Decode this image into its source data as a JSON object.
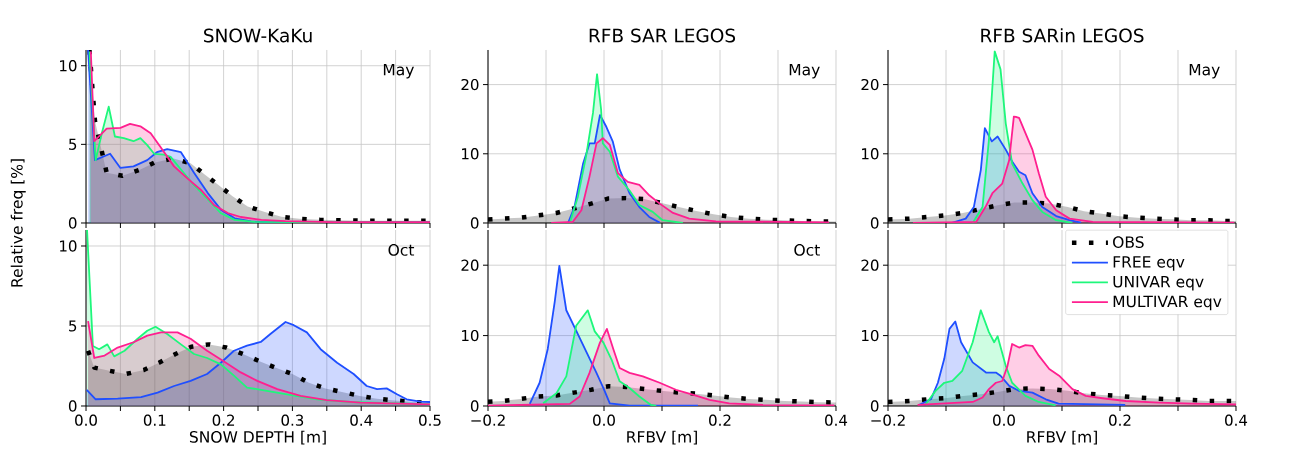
{
  "chart_data": [
    {
      "type": "area",
      "title": "SNOW-KaKu",
      "ylabel": "Relative freq [%]",
      "annotations": [
        "May"
      ],
      "xlim": [
        0,
        0.5
      ],
      "ylim": [
        0,
        11
      ],
      "grid": true,
      "tick_labels": "y",
      "xticks": [
        {
          "value": 0,
          "label": null
        },
        {
          "value": 0.05,
          "label": null
        },
        {
          "value": 0.1,
          "label": null
        },
        {
          "value": 0.15,
          "label": null
        },
        {
          "value": 0.2,
          "label": null
        },
        {
          "value": 0.25,
          "label": null
        },
        {
          "value": 0.3,
          "label": null
        },
        {
          "value": 0.35,
          "label": null
        },
        {
          "value": 0.4,
          "label": null
        },
        {
          "value": 0.45,
          "label": null
        },
        {
          "value": 0.5,
          "label": null
        }
      ],
      "yticks": [
        0,
        5,
        10
      ],
      "series": [
        {
          "color": "#000000",
          "line_style": "dotted",
          "x": [
            0.005,
            0.013,
            0.03,
            0.053,
            0.079,
            0.1,
            0.127,
            0.152,
            0.172,
            0.193,
            0.213,
            0.235,
            0.26,
            0.284,
            0.31,
            0.34,
            0.4,
            0.45,
            0.5
          ],
          "values": [
            11,
            6.5,
            3.2,
            3.0,
            3.4,
            3.85,
            4.1,
            3.8,
            3.1,
            2.4,
            1.7,
            1.05,
            0.7,
            0.4,
            0.27,
            0.2,
            0.15,
            0.15,
            0.15
          ]
        },
        {
          "color": "#1f4fff",
          "line_style": "solid",
          "x": [
            0.003,
            0.013,
            0.035,
            0.05,
            0.069,
            0.089,
            0.103,
            0.118,
            0.138,
            0.157,
            0.177,
            0.196,
            0.216,
            0.24,
            0.265,
            0.5
          ],
          "values": [
            11,
            4.0,
            4.4,
            3.5,
            3.6,
            4.0,
            4.5,
            4.7,
            4.5,
            3.2,
            1.9,
            0.85,
            0.3,
            0.1,
            0.05,
            0.05
          ]
        },
        {
          "color": "#1ef77b",
          "line_style": "solid",
          "x": [
            0.005,
            0.014,
            0.023,
            0.033,
            0.042,
            0.055,
            0.069,
            0.079,
            0.089,
            0.099,
            0.113,
            0.123,
            0.138,
            0.157,
            0.177,
            0.196,
            0.216,
            0.245,
            0.5
          ],
          "values": [
            10.9,
            4.0,
            5.7,
            7.4,
            5.5,
            5.4,
            5.2,
            5.4,
            4.95,
            4.4,
            4.35,
            4.2,
            3.4,
            2.4,
            1.5,
            0.63,
            0.2,
            0.07,
            0.03
          ]
        },
        {
          "color": "#ff1f8f",
          "line_style": "solid",
          "x": [
            0.007,
            0.012,
            0.03,
            0.05,
            0.064,
            0.079,
            0.094,
            0.108,
            0.128,
            0.147,
            0.167,
            0.186,
            0.206,
            0.225,
            0.255,
            0.29,
            0.36,
            0.5
          ],
          "values": [
            10.9,
            5.2,
            6.0,
            6.05,
            6.3,
            6.15,
            5.7,
            4.85,
            3.6,
            2.85,
            2.1,
            1.15,
            0.63,
            0.38,
            0.2,
            0.12,
            0.05,
            0.05
          ]
        }
      ]
    },
    {
      "type": "area",
      "title": "RFB SAR LEGOS",
      "annotations": [
        "May"
      ],
      "xlim": [
        -0.2,
        0.4
      ],
      "ylim": [
        0,
        25
      ],
      "grid": true,
      "tick_labels": "y",
      "xticks": [
        {
          "value": -0.2,
          "label": null
        },
        {
          "value": -0.1,
          "label": null
        },
        {
          "value": 0,
          "label": null
        },
        {
          "value": 0.1,
          "label": null
        },
        {
          "value": 0.2,
          "label": null
        },
        {
          "value": 0.3,
          "label": null
        },
        {
          "value": 0.4,
          "label": null
        }
      ],
      "yticks": [
        0,
        10,
        20
      ],
      "series": [
        {
          "color": "#000000",
          "line_style": "dotted",
          "x": [
            -0.2,
            -0.174,
            -0.144,
            -0.113,
            -0.082,
            -0.052,
            -0.022,
            0.008,
            0.038,
            0.069,
            0.099,
            0.129,
            0.159,
            0.189,
            0.219,
            0.25,
            0.279,
            0.311,
            0.341,
            0.371,
            0.4
          ],
          "values": [
            0.5,
            0.63,
            0.77,
            1.1,
            1.45,
            2.1,
            2.8,
            3.55,
            3.6,
            3.45,
            2.9,
            2.3,
            1.75,
            1.25,
            0.87,
            0.63,
            0.48,
            0.39,
            0.29,
            0.24,
            0.2
          ]
        },
        {
          "color": "#1f4fff",
          "line_style": "solid",
          "x": [
            -0.062,
            -0.051,
            -0.036,
            -0.025,
            -0.016,
            -0.007,
            0.004,
            0.015,
            0.027,
            0.044,
            0.061,
            0.078,
            0.096
          ],
          "values": [
            0,
            2.3,
            8.6,
            11.5,
            11.5,
            15.6,
            13.9,
            11.8,
            7.7,
            4.3,
            2.3,
            0.87,
            0.05
          ]
        },
        {
          "color": "#1ef77b",
          "line_style": "solid",
          "x": [
            -0.059,
            -0.045,
            -0.031,
            -0.019,
            -0.012,
            -0.005,
            -0.002,
            0.01,
            0.024,
            0.044,
            0.061,
            0.084,
            0.101,
            0.136
          ],
          "values": [
            0,
            3.8,
            9.6,
            15.9,
            21.5,
            16.4,
            11.5,
            10.3,
            6.7,
            4.7,
            2.6,
            1.6,
            0.4,
            0
          ]
        },
        {
          "color": "#ff1f8f",
          "line_style": "solid",
          "x": [
            -0.091,
            -0.054,
            -0.039,
            -0.025,
            -0.013,
            -0.002,
            0.01,
            0.024,
            0.041,
            0.061,
            0.078,
            0.096,
            0.119,
            0.147,
            0.193,
            0.388
          ],
          "values": [
            0,
            0.15,
            1.85,
            6.7,
            11.5,
            12.25,
            11.3,
            7.2,
            5.95,
            5.5,
            4.0,
            2.8,
            1.45,
            0.63,
            0.24,
            0.1
          ]
        }
      ]
    },
    {
      "type": "area",
      "title": "RFB SARin LEGOS",
      "annotations": [
        "May"
      ],
      "xlim": [
        -0.2,
        0.4
      ],
      "ylim": [
        0,
        25
      ],
      "grid": true,
      "tick_labels": "y",
      "xticks": [
        {
          "value": -0.2,
          "label": null
        },
        {
          "value": -0.1,
          "label": null
        },
        {
          "value": 0,
          "label": null
        },
        {
          "value": 0.1,
          "label": null
        },
        {
          "value": 0.2,
          "label": null
        },
        {
          "value": 0.3,
          "label": null
        },
        {
          "value": 0.4,
          "label": null
        }
      ],
      "yticks": [
        0,
        10,
        20
      ],
      "series": [
        {
          "color": "#000000",
          "line_style": "dotted",
          "x": [
            -0.2,
            -0.163,
            -0.132,
            -0.102,
            -0.071,
            -0.041,
            -0.011,
            0.018,
            0.049,
            0.079,
            0.11,
            0.138,
            0.169,
            0.199,
            0.23,
            0.261,
            0.291,
            0.322,
            0.353,
            0.383,
            0.4
          ],
          "values": [
            0.5,
            0.63,
            0.87,
            1.1,
            1.45,
            2.0,
            2.55,
            2.95,
            2.95,
            2.8,
            2.3,
            1.7,
            1.35,
            0.97,
            0.77,
            0.63,
            0.53,
            0.39,
            0.39,
            0.29,
            0.29
          ]
        },
        {
          "color": "#1f4fff",
          "line_style": "solid",
          "x": [
            -0.091,
            -0.066,
            -0.052,
            -0.04,
            -0.033,
            -0.021,
            -0.011,
            0.003,
            0.014,
            0.026,
            0.037,
            0.049,
            0.066,
            0.09,
            0.113,
            0.133
          ],
          "values": [
            0,
            0.63,
            2.3,
            7.65,
            13.7,
            11.8,
            12.5,
            10.6,
            8.9,
            7.4,
            6.9,
            4.3,
            2.3,
            1.0,
            0.4,
            0.05
          ]
        },
        {
          "color": "#1ef77b",
          "line_style": "solid",
          "x": [
            -0.054,
            -0.037,
            -0.026,
            -0.016,
            -0.006,
            0.003,
            0.014,
            0.032,
            0.049,
            0.066,
            0.09,
            0.118
          ],
          "values": [
            0,
            2.3,
            12.0,
            24.8,
            22.2,
            14.4,
            8.6,
            5.7,
            3.3,
            1.6,
            0.4,
            0
          ]
        },
        {
          "color": "#ff1f8f",
          "line_style": "solid",
          "x": [
            -0.157,
            -0.048,
            -0.032,
            -0.02,
            -0.003,
            0.009,
            0.017,
            0.026,
            0.037,
            0.049,
            0.06,
            0.072,
            0.09,
            0.113,
            0.153,
            0.397
          ],
          "values": [
            0,
            0.15,
            2.3,
            4.3,
            5.7,
            9.1,
            15.4,
            15.2,
            13.0,
            10.6,
            7.2,
            3.8,
            1.85,
            0.63,
            0.15,
            0.05
          ]
        }
      ]
    },
    {
      "type": "area",
      "xlabel": "SNOW DEPTH [m]",
      "annotations": [
        "Oct"
      ],
      "xlim": [
        0,
        0.5
      ],
      "ylim": [
        0,
        11
      ],
      "grid": true,
      "xticks": [
        {
          "value": 0,
          "label": "0.0"
        },
        {
          "value": 0.05,
          "label": null
        },
        0.1,
        {
          "value": 0.15,
          "label": null
        },
        0.2,
        {
          "value": 0.25,
          "label": null
        },
        0.3,
        {
          "value": 0.35,
          "label": null
        },
        0.4,
        {
          "value": 0.45,
          "label": null
        },
        0.5
      ],
      "yticks": [
        0,
        5,
        10
      ],
      "series": [
        {
          "color": "#000000",
          "line_style": "dotted",
          "x": [
            0.003,
            0.012,
            0.034,
            0.058,
            0.084,
            0.106,
            0.13,
            0.153,
            0.179,
            0.204,
            0.228,
            0.252,
            0.275,
            0.3,
            0.324,
            0.348,
            0.372,
            0.398,
            0.423,
            0.449,
            0.476,
            0.5
          ],
          "values": [
            3.45,
            2.4,
            2.2,
            2.0,
            2.25,
            2.7,
            3.25,
            3.7,
            3.85,
            3.65,
            3.25,
            2.8,
            2.4,
            2.0,
            1.45,
            1.1,
            0.88,
            0.63,
            0.46,
            0.35,
            0.25,
            0.2
          ]
        },
        {
          "color": "#1f4fff",
          "line_style": "solid",
          "x": [
            0.001,
            0.014,
            0.046,
            0.08,
            0.104,
            0.128,
            0.152,
            0.176,
            0.196,
            0.215,
            0.234,
            0.254,
            0.268,
            0.29,
            0.302,
            0.321,
            0.341,
            0.365,
            0.389,
            0.408,
            0.423,
            0.437,
            0.452,
            0.466,
            0.486,
            0.5
          ],
          "values": [
            1.0,
            0.42,
            0.46,
            0.56,
            0.84,
            1.25,
            1.57,
            2.0,
            2.7,
            3.45,
            3.77,
            4.0,
            4.5,
            5.25,
            5.05,
            4.6,
            3.55,
            2.7,
            2.0,
            1.25,
            1.05,
            1.1,
            0.73,
            0.42,
            0.27,
            0.25
          ]
        },
        {
          "color": "#1ef77b",
          "line_style": "solid",
          "x": [
            0.0015,
            0.01,
            0.019,
            0.031,
            0.041,
            0.056,
            0.075,
            0.089,
            0.101,
            0.118,
            0.138,
            0.157,
            0.176,
            0.196,
            0.215,
            0.234,
            0.263,
            0.292,
            0.336,
            0.384,
            0.5
          ],
          "values": [
            11,
            3.75,
            3.55,
            3.85,
            3.1,
            3.45,
            4.2,
            4.7,
            4.95,
            4.5,
            3.85,
            3.25,
            3.0,
            2.6,
            1.9,
            1.15,
            0.95,
            0.73,
            0.42,
            0.25,
            0.1
          ]
        },
        {
          "color": "#ff1f8f",
          "line_style": "solid",
          "x": [
            0.003,
            0.012,
            0.027,
            0.046,
            0.07,
            0.089,
            0.109,
            0.133,
            0.152,
            0.176,
            0.2,
            0.225,
            0.249,
            0.278,
            0.312,
            0.35,
            0.399,
            0.5
          ],
          "values": [
            5.3,
            3.0,
            3.15,
            3.65,
            4.0,
            4.4,
            4.6,
            4.6,
            4.2,
            3.45,
            2.8,
            2.1,
            1.57,
            1.05,
            0.63,
            0.36,
            0.21,
            0.1
          ]
        }
      ]
    },
    {
      "type": "area",
      "xlabel": "RFBV [m]",
      "annotations": [
        "Oct"
      ],
      "xlim": [
        -0.2,
        0.4
      ],
      "ylim": [
        0,
        25
      ],
      "grid": true,
      "xticks": [
        {
          "value": -0.2,
          "label": "−0.2"
        },
        {
          "value": -0.1,
          "label": null
        },
        {
          "value": 0,
          "label": "0.0"
        },
        {
          "value": 0.1,
          "label": null
        },
        0.2,
        {
          "value": 0.3,
          "label": null
        },
        0.4
      ],
      "yticks": [
        0,
        10,
        20
      ],
      "series": [
        {
          "color": "#000000",
          "line_style": "dotted",
          "x": [
            -0.2,
            -0.174,
            -0.144,
            -0.113,
            -0.082,
            -0.052,
            -0.022,
            0.008,
            0.038,
            0.069,
            0.099,
            0.129,
            0.159,
            0.189,
            0.219,
            0.25,
            0.279,
            0.311,
            0.341,
            0.371,
            0.4
          ],
          "values": [
            0.6,
            0.72,
            1.0,
            1.35,
            1.5,
            1.9,
            2.3,
            2.8,
            2.7,
            2.4,
            2.15,
            1.9,
            1.75,
            1.5,
            1.2,
            1.0,
            0.87,
            0.72,
            0.63,
            0.53,
            0.5
          ]
        },
        {
          "color": "#1f4fff",
          "line_style": "solid",
          "x": [
            -0.128,
            -0.111,
            -0.097,
            -0.085,
            -0.077,
            -0.065,
            -0.048,
            -0.03,
            -0.013,
            -0.001,
            0.01,
            0.044,
            0.162
          ],
          "values": [
            0.3,
            3.3,
            8.1,
            14.8,
            19.9,
            13.6,
            10.7,
            7.6,
            4.7,
            2.55,
            0.38,
            0.05,
            0.05
          ]
        },
        {
          "color": "#1ef77b",
          "line_style": "solid",
          "x": [
            -0.105,
            -0.082,
            -0.065,
            -0.048,
            -0.028,
            -0.016,
            -0.001,
            0.013,
            0.027,
            0.044,
            0.061,
            0.081,
            0.09
          ],
          "values": [
            0.4,
            1.8,
            4.2,
            11.4,
            13.6,
            10.6,
            9.0,
            6.6,
            3.5,
            2.55,
            1.35,
            0.15,
            0
          ]
        },
        {
          "color": "#ff1f8f",
          "line_style": "solid",
          "x": [
            -0.2,
            -0.059,
            -0.042,
            -0.025,
            -0.007,
            0.005,
            0.016,
            0.027,
            0.044,
            0.067,
            0.096,
            0.124,
            0.153,
            0.182,
            0.216,
            0.274,
            0.397
          ],
          "values": [
            0.05,
            0.3,
            1.35,
            4.7,
            9.0,
            10.95,
            8.1,
            5.4,
            4.7,
            4.2,
            3.3,
            2.3,
            1.6,
            0.87,
            0.38,
            0.15,
            0.1
          ]
        }
      ]
    },
    {
      "type": "area",
      "xlabel": "RFBV [m]",
      "legend": "top right",
      "xlim": [
        -0.2,
        0.4
      ],
      "ylim": [
        0,
        25
      ],
      "grid": true,
      "xticks": [
        {
          "value": -0.2,
          "label": "−0.2"
        },
        {
          "value": -0.1,
          "label": null
        },
        {
          "value": 0,
          "label": "0.0"
        },
        {
          "value": 0.1,
          "label": null
        },
        0.2,
        {
          "value": 0.3,
          "label": null
        },
        0.4
      ],
      "yticks": [
        0,
        10,
        20
      ],
      "series": [
        {
          "name": "OBS",
          "color": "#000000",
          "line_style": "dotted",
          "x": [
            -0.2,
            -0.163,
            -0.132,
            -0.102,
            -0.071,
            -0.041,
            -0.011,
            0.018,
            0.049,
            0.079,
            0.11,
            0.138,
            0.169,
            0.199,
            0.23,
            0.261,
            0.291,
            0.322,
            0.353,
            0.383,
            0.4
          ],
          "values": [
            0.57,
            0.71,
            0.95,
            1.1,
            1.43,
            1.67,
            2.0,
            2.4,
            2.5,
            2.4,
            2.15,
            1.8,
            1.57,
            1.43,
            1.2,
            1.05,
            0.95,
            0.86,
            0.71,
            0.71,
            0.7
          ]
        },
        {
          "name": "FREE eqv",
          "color": "#1f4fff",
          "line_style": "solid",
          "x": [
            -0.146,
            -0.126,
            -0.114,
            -0.103,
            -0.094,
            -0.084,
            -0.074,
            -0.054,
            -0.031,
            -0.014,
            -0.006,
            0.009,
            0.026,
            0.049,
            0.072,
            0.094,
            0.209
          ],
          "values": [
            0.15,
            0.95,
            3.3,
            6.7,
            10.95,
            12.0,
            9.05,
            6.2,
            4.75,
            4.75,
            4.3,
            2.85,
            2.15,
            1.9,
            0.95,
            0.33,
            0.15
          ]
        },
        {
          "name": "UNIVAR eqv",
          "color": "#1ef77b",
          "line_style": "solid",
          "x": [
            -0.135,
            -0.118,
            -0.103,
            -0.089,
            -0.072,
            -0.054,
            -0.04,
            -0.026,
            -0.017,
            -0.011,
            0.003,
            0.014,
            0.037,
            0.06,
            0.089
          ],
          "values": [
            0.24,
            2.15,
            3.3,
            3.55,
            5.0,
            9.05,
            13.6,
            10.5,
            9.05,
            9.9,
            5.7,
            3.3,
            1.43,
            0.57,
            0.1
          ]
        },
        {
          "name": "MULTIVAR eqv",
          "color": "#ff1f8f",
          "line_style": "solid",
          "x": [
            -0.149,
            -0.054,
            -0.037,
            -0.026,
            -0.014,
            -0.003,
            0.006,
            0.014,
            0.026,
            0.037,
            0.049,
            0.06,
            0.078,
            0.095,
            0.118,
            0.141,
            0.17,
            0.21,
            0.268,
            0.325,
            0.4
          ],
          "values": [
            0.15,
            0.57,
            1.2,
            2.4,
            3.3,
            3.55,
            5.7,
            8.8,
            8.3,
            8.65,
            8.55,
            7.15,
            5.25,
            4.3,
            2.4,
            1.43,
            1.1,
            0.71,
            0.48,
            0.33,
            0.24
          ]
        }
      ]
    }
  ]
}
